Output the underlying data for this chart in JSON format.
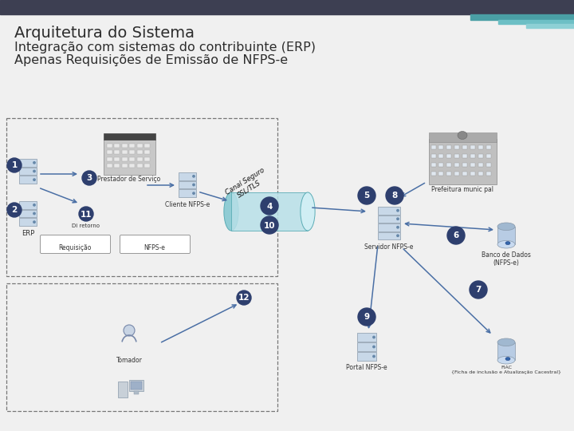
{
  "title_line1": "Arquitetura do Sistema",
  "title_line2": "Integração com sistemas do contribuinte (ERP)",
  "title_line3": "Apenas Requisições de Emissão de NFPS-e",
  "header_bg": "#3d3f52",
  "teal_bar1": "#4a9fa5",
  "teal_bar2": "#6dbfc5",
  "teal_bar3": "#8ed0d5",
  "bg_color": "#f0f0f0",
  "title_color": "#2d2d2d",
  "node_color": "#2e3f6e",
  "node_text_color": "#ffffff",
  "arrow_color": "#4a6fa5",
  "dashed_box_color": "#777777",
  "tunnel_fill": "#b8dfe5",
  "tunnel_edge": "#5aacb5",
  "server_fill": "#c8d8e8",
  "server_edge": "#8899aa",
  "db_fill": "#a8c0d8",
  "building_fill": "#c8c8c8",
  "labels": {
    "erp": "ERP",
    "prestador": "Prestador de Serviço",
    "cliente_nfps": "Cliente NFPS-e",
    "servidor_nfps": "Servidor NFPS-e",
    "prefeitura": "Prefeitura munic pal",
    "banco_dados": "Banco de Dados\n(NFPS-e)",
    "portal_nfps": "Portal NFPS-e",
    "fiac": "FIAC\n{Ficha de inclusão e Atualização Cacestral}",
    "tomador": "Tomador",
    "canal_seguro": "Canal Seguro\nSSL/TLS",
    "di_retorno": "Di retorno",
    "requisicao": "Requisição",
    "nfps_e_label": "NFPS-e"
  }
}
